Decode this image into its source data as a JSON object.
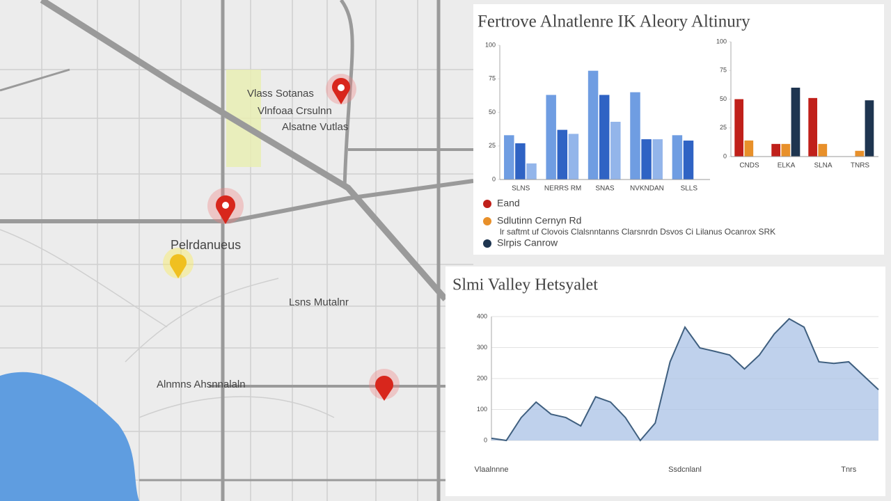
{
  "map": {
    "labels": [
      "Vlass Sotanas",
      "Vlnfoaa Crsulnn",
      "Alsatne Vutlas",
      "Pelrdanueus",
      "Lsns Mutalnr",
      "Alnmns Ahsnnalaln"
    ]
  },
  "panel_top": {
    "title": "Fertrove Alnatlenre IK Aleory Altinury",
    "note": "lr saftmt uf Clovois Clalsnntanns Clarsnrdn Dsvos Ci Lilanus Ocanrox SRK"
  },
  "panel_bottom": {
    "title": "Slmi Valley Hetsyalet"
  },
  "chart_data": [
    {
      "type": "bar",
      "categories": [
        "SLNS",
        "NERRS RM",
        "SNAS",
        "NVKNDAN",
        "SLLS"
      ],
      "series": [
        {
          "color": "#6f9de2",
          "values": [
            33,
            63,
            81,
            65,
            33
          ]
        },
        {
          "color": "#2f63c4",
          "values": [
            27,
            37,
            63,
            30,
            29
          ]
        },
        {
          "color": "#93b5ea",
          "values": [
            12,
            34,
            43,
            30,
            null
          ]
        }
      ],
      "ylim": [
        0,
        100
      ],
      "yticks": [
        0,
        25,
        50,
        75,
        100
      ],
      "grid": false
    },
    {
      "type": "bar",
      "categories": [
        "CNDS",
        "ELKA",
        "SLNA",
        "TNRS"
      ],
      "series": [
        {
          "name": "Eand",
          "color": "#c0201a",
          "values": [
            50,
            11,
            51,
            null
          ]
        },
        {
          "name": "Sdlutinn Cernyn Rd",
          "color": "#e8902a",
          "values": [
            14,
            11,
            11,
            5
          ]
        },
        {
          "name": "Slrpis Canrow",
          "color": "#1e3550",
          "values": [
            null,
            60,
            null,
            49
          ]
        }
      ],
      "ylim": [
        0,
        100
      ],
      "yticks": [
        0,
        25,
        50,
        75,
        100
      ],
      "grid": false
    },
    {
      "type": "line",
      "categories": [
        "Vlaalnnne",
        null,
        null,
        null,
        null,
        null,
        null,
        null,
        null,
        null,
        null,
        null,
        null,
        "Ssdcnlanl",
        null,
        null,
        null,
        null,
        null,
        null,
        null,
        null,
        null,
        null,
        "Tnrs",
        null,
        null
      ],
      "series": [
        {
          "color": "#3f5f7f",
          "values": [
            7,
            0,
            74,
            124,
            85,
            74,
            47,
            141,
            124,
            74,
            0,
            56,
            254,
            366,
            299,
            288,
            276,
            231,
            276,
            344,
            393,
            366,
            254,
            249,
            254,
            209,
            164
          ]
        }
      ],
      "ylim": [
        0,
        400
      ],
      "yticks": [
        0,
        100,
        200,
        300,
        400
      ],
      "grid": true
    }
  ]
}
